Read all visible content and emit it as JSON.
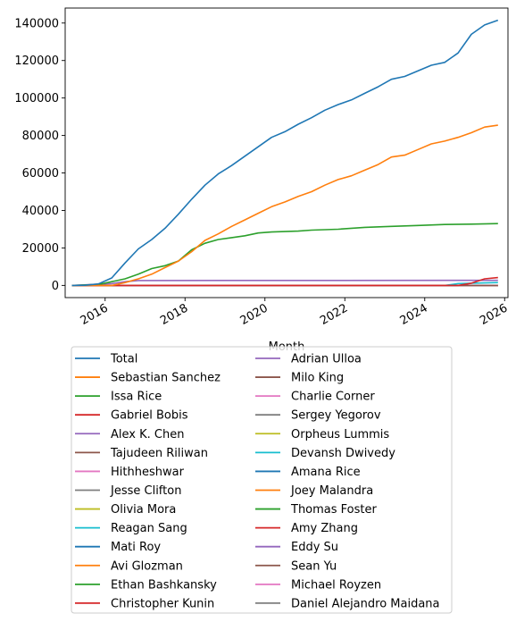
{
  "chart_data": {
    "type": "line",
    "title": "",
    "xlabel": "Month",
    "ylabel": "",
    "x_range": [
      "2015-01",
      "2026-02"
    ],
    "ylim": [
      -6500,
      148000
    ],
    "x_ticks": [
      "2016",
      "2018",
      "2020",
      "2022",
      "2024",
      "2026"
    ],
    "y_ticks": [
      0,
      20000,
      40000,
      60000,
      80000,
      100000,
      120000,
      140000
    ],
    "y_tick_labels": [
      "0",
      "20000",
      "40000",
      "60000",
      "80000",
      "100000",
      "120000",
      "140000"
    ],
    "grid": false,
    "legend_position": "below",
    "legend_columns": 2,
    "series": [
      {
        "name": "Total",
        "color": "#1f77b4",
        "points": [
          [
            "2015-03",
            0
          ],
          [
            "2015-07",
            100
          ],
          [
            "2015-11",
            800
          ],
          [
            "2016-03",
            4000
          ],
          [
            "2016-07",
            12000
          ],
          [
            "2016-11",
            19500
          ],
          [
            "2017-03",
            24500
          ],
          [
            "2017-07",
            30500
          ],
          [
            "2017-11",
            38000
          ],
          [
            "2018-03",
            46000
          ],
          [
            "2018-07",
            53500
          ],
          [
            "2018-11",
            59500
          ],
          [
            "2019-03",
            64000
          ],
          [
            "2019-07",
            69000
          ],
          [
            "2019-11",
            74000
          ],
          [
            "2020-03",
            79000
          ],
          [
            "2020-07",
            82000
          ],
          [
            "2020-11",
            86000
          ],
          [
            "2021-03",
            89500
          ],
          [
            "2021-07",
            93500
          ],
          [
            "2021-11",
            96500
          ],
          [
            "2022-03",
            99000
          ],
          [
            "2022-07",
            102500
          ],
          [
            "2022-11",
            106000
          ],
          [
            "2023-03",
            110000
          ],
          [
            "2023-07",
            111500
          ],
          [
            "2023-11",
            114500
          ],
          [
            "2024-03",
            117500
          ],
          [
            "2024-07",
            119000
          ],
          [
            "2024-11",
            124000
          ],
          [
            "2025-03",
            134000
          ],
          [
            "2025-07",
            139000
          ],
          [
            "2025-11",
            141500
          ]
        ]
      },
      {
        "name": "Sebastian Sanchez",
        "color": "#ff7f0e",
        "points": [
          [
            "2015-03",
            0
          ],
          [
            "2016-03",
            0
          ],
          [
            "2016-07",
            1500
          ],
          [
            "2016-11",
            3500
          ],
          [
            "2017-03",
            6000
          ],
          [
            "2017-07",
            9500
          ],
          [
            "2017-11",
            13000
          ],
          [
            "2018-03",
            18000
          ],
          [
            "2018-07",
            24000
          ],
          [
            "2018-11",
            27500
          ],
          [
            "2019-03",
            31500
          ],
          [
            "2019-07",
            35000
          ],
          [
            "2019-11",
            38500
          ],
          [
            "2020-03",
            42000
          ],
          [
            "2020-07",
            44500
          ],
          [
            "2020-11",
            47500
          ],
          [
            "2021-03",
            50000
          ],
          [
            "2021-07",
            53500
          ],
          [
            "2021-11",
            56500
          ],
          [
            "2022-03",
            58500
          ],
          [
            "2022-07",
            61500
          ],
          [
            "2022-11",
            64500
          ],
          [
            "2023-03",
            68500
          ],
          [
            "2023-07",
            69500
          ],
          [
            "2023-11",
            72500
          ],
          [
            "2024-03",
            75500
          ],
          [
            "2024-07",
            77000
          ],
          [
            "2024-11",
            79000
          ],
          [
            "2025-03",
            81500
          ],
          [
            "2025-07",
            84500
          ],
          [
            "2025-11",
            85500
          ]
        ]
      },
      {
        "name": "Issa Rice",
        "color": "#2ca02c",
        "points": [
          [
            "2015-03",
            0
          ],
          [
            "2015-11",
            500
          ],
          [
            "2016-03",
            2000
          ],
          [
            "2016-07",
            3500
          ],
          [
            "2016-11",
            6000
          ],
          [
            "2017-03",
            9000
          ],
          [
            "2017-07",
            10500
          ],
          [
            "2017-11",
            13000
          ],
          [
            "2018-03",
            19000
          ],
          [
            "2018-07",
            22500
          ],
          [
            "2018-11",
            24500
          ],
          [
            "2019-03",
            25500
          ],
          [
            "2019-07",
            26500
          ],
          [
            "2019-11",
            28000
          ],
          [
            "2020-03",
            28500
          ],
          [
            "2020-11",
            29000
          ],
          [
            "2021-03",
            29500
          ],
          [
            "2021-11",
            30000
          ],
          [
            "2022-07",
            31000
          ],
          [
            "2023-03",
            31500
          ],
          [
            "2023-11",
            32000
          ],
          [
            "2024-07",
            32500
          ],
          [
            "2025-03",
            32700
          ],
          [
            "2025-11",
            33000
          ]
        ]
      },
      {
        "name": "Gabriel Bobis",
        "color": "#d62728",
        "points": [
          [
            "2015-03",
            0
          ],
          [
            "2024-11",
            0
          ],
          [
            "2025-03",
            1200
          ],
          [
            "2025-07",
            3500
          ],
          [
            "2025-11",
            4200
          ]
        ]
      },
      {
        "name": "Alex K. Chen",
        "color": "#9467bd",
        "points": [
          [
            "2015-03",
            0
          ],
          [
            "2016-03",
            1000
          ],
          [
            "2016-07",
            2000
          ],
          [
            "2016-11",
            2600
          ],
          [
            "2025-11",
            2700
          ]
        ]
      },
      {
        "name": "Tajudeen Riliwan",
        "color": "#8c564b",
        "points": [
          [
            "2015-03",
            0
          ],
          [
            "2025-11",
            0
          ]
        ]
      },
      {
        "name": "Hithheshwar",
        "color": "#e377c2",
        "points": [
          [
            "2015-03",
            0
          ],
          [
            "2025-11",
            0
          ]
        ]
      },
      {
        "name": "Jesse Clifton",
        "color": "#7f7f7f",
        "points": [
          [
            "2015-03",
            0
          ],
          [
            "2025-11",
            0
          ]
        ]
      },
      {
        "name": "Olivia Mora",
        "color": "#bcbd22",
        "points": [
          [
            "2015-03",
            0
          ],
          [
            "2025-11",
            0
          ]
        ]
      },
      {
        "name": "Reagan Sang",
        "color": "#17becf",
        "points": [
          [
            "2015-03",
            0
          ],
          [
            "2024-07",
            0
          ],
          [
            "2024-11",
            1000
          ],
          [
            "2025-11",
            1500
          ]
        ]
      },
      {
        "name": "Mati Roy",
        "color": "#1f77b4",
        "points": [
          [
            "2015-03",
            0
          ],
          [
            "2025-11",
            0
          ]
        ]
      },
      {
        "name": "Avi Glozman",
        "color": "#ff7f0e",
        "points": [
          [
            "2015-03",
            0
          ],
          [
            "2025-11",
            0
          ]
        ]
      },
      {
        "name": "Ethan Bashkansky",
        "color": "#2ca02c",
        "points": [
          [
            "2015-03",
            0
          ],
          [
            "2025-11",
            0
          ]
        ]
      },
      {
        "name": "Christopher Kunin",
        "color": "#d62728",
        "points": [
          [
            "2015-03",
            0
          ],
          [
            "2025-11",
            0
          ]
        ]
      },
      {
        "name": "Adrian Ulloa",
        "color": "#9467bd",
        "points": [
          [
            "2015-03",
            0
          ],
          [
            "2025-11",
            0
          ]
        ]
      },
      {
        "name": "Milo King",
        "color": "#8c564b",
        "points": [
          [
            "2015-03",
            0
          ],
          [
            "2025-11",
            0
          ]
        ]
      },
      {
        "name": "Charlie Corner",
        "color": "#e377c2",
        "points": [
          [
            "2015-03",
            0
          ],
          [
            "2025-11",
            0
          ]
        ]
      },
      {
        "name": "Sergey Yegorov",
        "color": "#7f7f7f",
        "points": [
          [
            "2015-03",
            0
          ],
          [
            "2025-11",
            0
          ]
        ]
      },
      {
        "name": "Orpheus Lummis",
        "color": "#bcbd22",
        "points": [
          [
            "2015-03",
            0
          ],
          [
            "2025-11",
            0
          ]
        ]
      },
      {
        "name": "Devansh Dwivedy",
        "color": "#17becf",
        "points": [
          [
            "2015-03",
            0
          ],
          [
            "2025-11",
            0
          ]
        ]
      },
      {
        "name": "Amana Rice",
        "color": "#1f77b4",
        "points": [
          [
            "2015-03",
            0
          ],
          [
            "2025-11",
            0
          ]
        ]
      },
      {
        "name": "Joey Malandra",
        "color": "#ff7f0e",
        "points": [
          [
            "2015-03",
            0
          ],
          [
            "2025-11",
            0
          ]
        ]
      },
      {
        "name": "Thomas Foster",
        "color": "#2ca02c",
        "points": [
          [
            "2015-03",
            0
          ],
          [
            "2025-11",
            0
          ]
        ]
      },
      {
        "name": "Amy Zhang",
        "color": "#d62728",
        "points": [
          [
            "2015-03",
            0
          ],
          [
            "2025-11",
            0
          ]
        ]
      },
      {
        "name": "Eddy Su",
        "color": "#9467bd",
        "points": [
          [
            "2015-03",
            0
          ],
          [
            "2025-11",
            0
          ]
        ]
      },
      {
        "name": "Sean Yu",
        "color": "#8c564b",
        "points": [
          [
            "2015-03",
            0
          ],
          [
            "2025-11",
            0
          ]
        ]
      },
      {
        "name": "Michael Royzen",
        "color": "#e377c2",
        "points": [
          [
            "2015-03",
            0
          ],
          [
            "2025-11",
            0
          ]
        ]
      },
      {
        "name": "Daniel Alejandro Maidana",
        "color": "#7f7f7f",
        "points": [
          [
            "2015-03",
            0
          ],
          [
            "2025-11",
            0
          ]
        ]
      }
    ]
  }
}
